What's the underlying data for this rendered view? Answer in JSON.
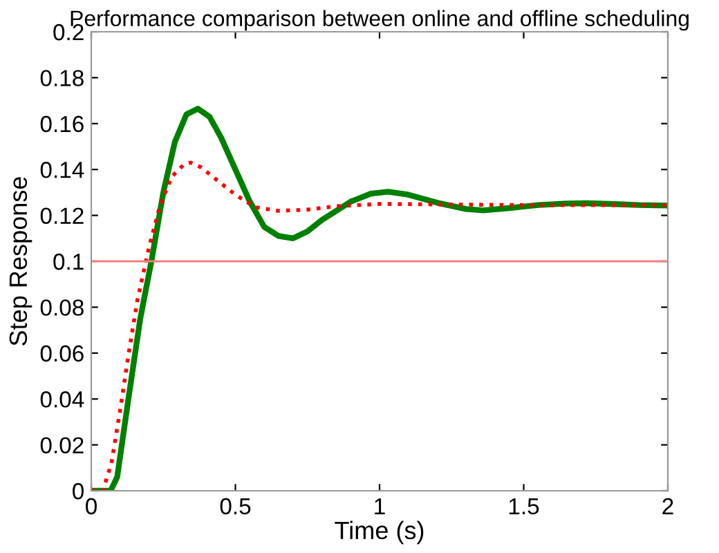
{
  "chart_data": {
    "type": "line",
    "title": "Performance comparison between online and offline scheduling",
    "xlabel": "Time (s)",
    "ylabel": "Step Response",
    "xlim": [
      0,
      2
    ],
    "xticks": [
      0,
      0.5,
      1,
      1.5,
      2
    ],
    "ylim": [
      0,
      0.2
    ],
    "yticks": [
      0,
      0.02,
      0.04,
      0.06,
      0.08,
      0.1,
      0.12,
      0.14,
      0.16,
      0.18,
      0.2
    ],
    "grid": false,
    "legend": false,
    "ref_lines": [
      {
        "axis": "y",
        "value": 0.1,
        "color": "#f08080",
        "line_style": "solid"
      }
    ],
    "series": [
      {
        "color": "#008000",
        "line_style": "solid",
        "x": [
          0,
          0.067,
          0.09,
          0.13,
          0.17,
          0.21,
          0.25,
          0.29,
          0.33,
          0.37,
          0.41,
          0.45,
          0.5,
          0.55,
          0.6,
          0.65,
          0.7,
          0.75,
          0.8,
          0.9,
          0.97,
          1.03,
          1.1,
          1.2,
          1.3,
          1.36,
          1.45,
          1.55,
          1.65,
          1.72,
          1.8,
          1.9,
          2
        ],
        "values": [
          0,
          0,
          0.006,
          0.041,
          0.075,
          0.101,
          0.13,
          0.152,
          0.164,
          0.1665,
          0.163,
          0.154,
          0.14,
          0.126,
          0.115,
          0.111,
          0.11,
          0.113,
          0.118,
          0.126,
          0.1295,
          0.1303,
          0.129,
          0.1255,
          0.1228,
          0.1222,
          0.1232,
          0.1245,
          0.1252,
          0.1253,
          0.125,
          0.1245,
          0.1243
        ]
      },
      {
        "color": "#ff0000",
        "line_style": "dotted",
        "x": [
          0,
          0.04,
          0.07,
          0.1,
          0.13,
          0.16,
          0.2,
          0.24,
          0.28,
          0.32,
          0.345,
          0.38,
          0.43,
          0.5,
          0.57,
          0.65,
          0.75,
          0.85,
          1.0,
          1.2,
          1.5,
          2
        ],
        "values": [
          0,
          0,
          0.012,
          0.035,
          0.06,
          0.083,
          0.106,
          0.125,
          0.137,
          0.142,
          0.143,
          0.141,
          0.136,
          0.129,
          0.1235,
          0.122,
          0.1225,
          0.124,
          0.125,
          0.1248,
          0.1245,
          0.1245
        ]
      }
    ]
  }
}
